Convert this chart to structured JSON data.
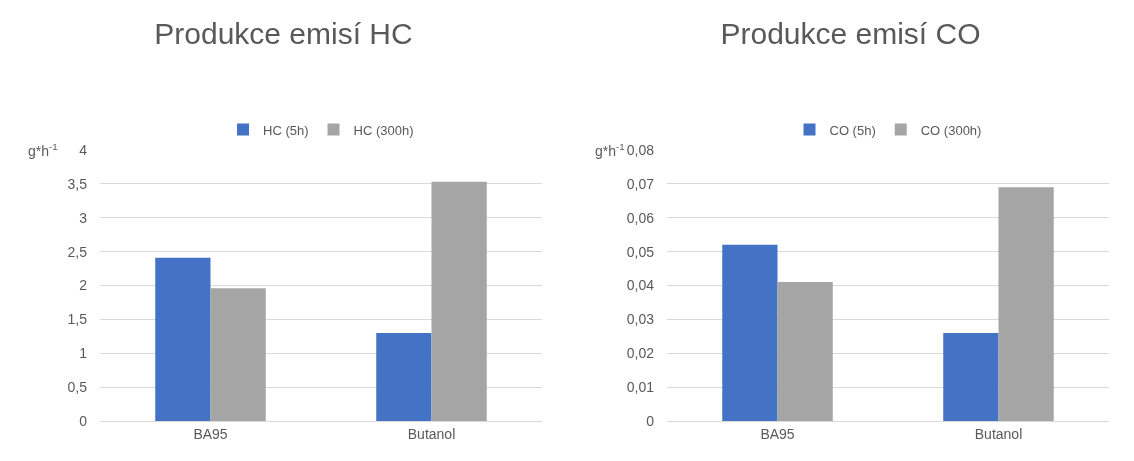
{
  "chart_data": [
    {
      "type": "bar",
      "title": "Produkce emisí HC",
      "ylabel": "g*h$^{-1}$",
      "categories": [
        "BA95",
        "Butanol"
      ],
      "series": [
        {
          "name": "HC (5h)",
          "color": "#4472c4",
          "values": [
            2.41,
            1.3
          ]
        },
        {
          "name": "HC (300h)",
          "color": "#a5a5a5",
          "values": [
            1.96,
            3.53
          ]
        }
      ],
      "ylim": [
        0,
        4
      ],
      "yticks": [
        0,
        {
          "value": 0.5,
          "label": "0,5"
        },
        1,
        {
          "value": 1.5,
          "label": "1,5"
        },
        2,
        {
          "value": 2.5,
          "label": "2,5"
        },
        3,
        {
          "value": 3.5,
          "label": "3,5"
        },
        4
      ],
      "grid": "y",
      "legend": "top"
    },
    {
      "type": "bar",
      "title": "Produkce emisí CO",
      "ylabel": "g*h$^{-1}$",
      "categories": [
        "BA95",
        "Butanol"
      ],
      "series": [
        {
          "name": "CO (5h)",
          "color": "#4472c4",
          "values": [
            0.052,
            0.026
          ]
        },
        {
          "name": "CO (300h)",
          "color": "#a5a5a5",
          "values": [
            0.041,
            0.069
          ]
        }
      ],
      "ylim": [
        0,
        0.08
      ],
      "yticks": [
        0,
        {
          "value": 0.01,
          "label": "0,01"
        },
        {
          "value": 0.02,
          "label": "0,02"
        },
        {
          "value": 0.03,
          "label": "0,03"
        },
        {
          "value": 0.04,
          "label": "0,04"
        },
        {
          "value": 0.05,
          "label": "0,05"
        },
        {
          "value": 0.06,
          "label": "0,06"
        },
        {
          "value": 0.07,
          "label": "0,07"
        },
        {
          "value": 0.08,
          "label": "0,08"
        }
      ],
      "grid": "y",
      "legend": "top"
    }
  ]
}
